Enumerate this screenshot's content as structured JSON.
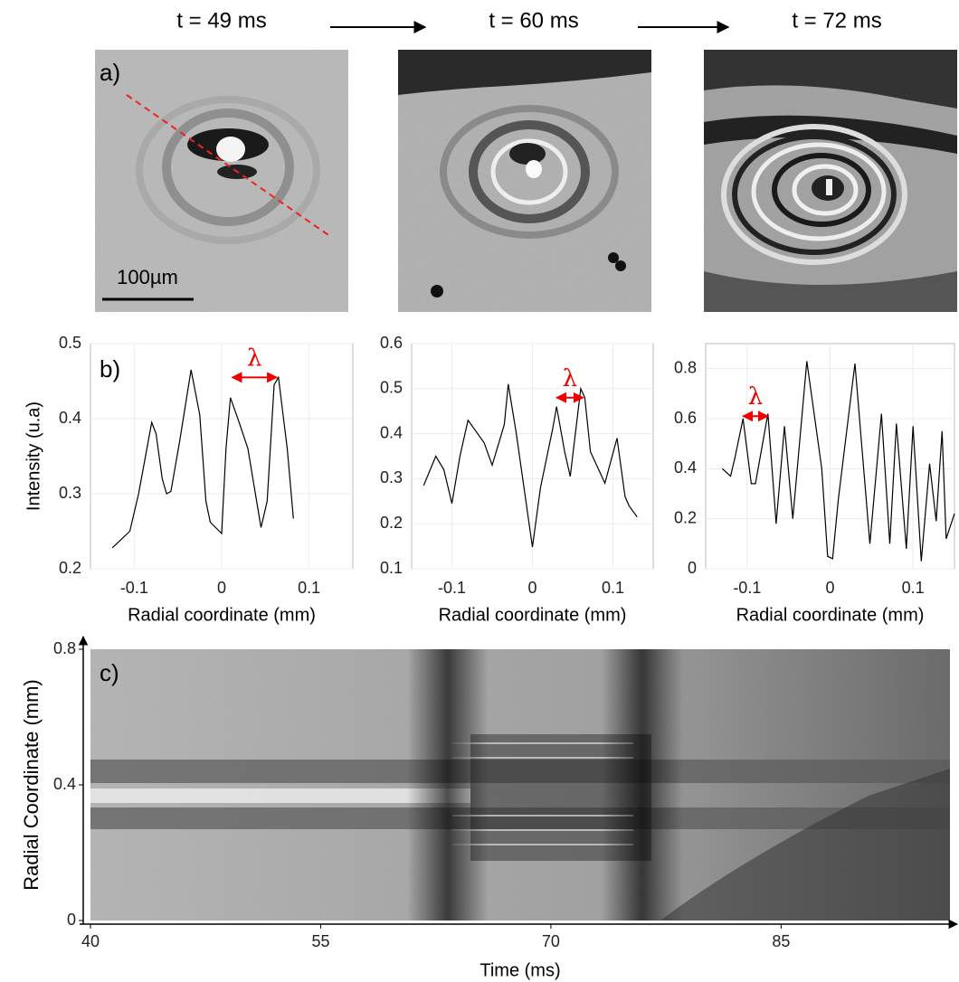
{
  "panel_a": {
    "label": "a)",
    "times": [
      "t = 49 ms",
      "t = 60 ms",
      "t = 72 ms"
    ],
    "scale_bar": "100µm"
  },
  "chart_data": [
    {
      "type": "line",
      "label": "b)",
      "ylabel": "Intensity (u.a)",
      "xlabel": "Radial coordinate (mm)",
      "color": "#000000",
      "grid": true,
      "xlim": [
        -0.15,
        0.15
      ],
      "xticks": [
        -0.1,
        0,
        0.1
      ],
      "ylim": [
        0.2,
        0.5
      ],
      "yticks": [
        0.2,
        0.3,
        0.4,
        0.5
      ],
      "x": [
        -0.125,
        -0.105,
        -0.095,
        -0.08,
        -0.075,
        -0.068,
        -0.063,
        -0.058,
        -0.048,
        -0.035,
        -0.025,
        -0.018,
        -0.013,
        0,
        0.005,
        0.01,
        0.02,
        0.03,
        0.045,
        0.052,
        0.06,
        0.065,
        0.075,
        0.082
      ],
      "values": [
        0.228,
        0.25,
        0.3,
        0.395,
        0.38,
        0.32,
        0.3,
        0.303,
        0.37,
        0.465,
        0.405,
        0.29,
        0.262,
        0.247,
        0.36,
        0.428,
        0.395,
        0.36,
        0.255,
        0.29,
        0.445,
        0.455,
        0.36,
        0.267
      ],
      "annotation": {
        "text": "λ",
        "x": [
          0.012,
          0.063
        ],
        "y": 0.455
      }
    },
    {
      "type": "line",
      "xlabel": "Radial coordinate (mm)",
      "color": "#000000",
      "grid": true,
      "xlim": [
        -0.15,
        0.15
      ],
      "xticks": [
        -0.1,
        0,
        0.1
      ],
      "ylim": [
        0.1,
        0.6
      ],
      "yticks": [
        0.1,
        0.2,
        0.3,
        0.4,
        0.5,
        0.6
      ],
      "x": [
        -0.135,
        -0.12,
        -0.11,
        -0.1,
        -0.09,
        -0.08,
        -0.06,
        -0.05,
        -0.035,
        -0.03,
        -0.02,
        0,
        0.01,
        0.025,
        0.03,
        0.04,
        0.047,
        0.06,
        0.065,
        0.072,
        0.09,
        0.105,
        0.115,
        0.12,
        0.13
      ],
      "values": [
        0.285,
        0.35,
        0.32,
        0.245,
        0.35,
        0.43,
        0.38,
        0.33,
        0.42,
        0.51,
        0.4,
        0.148,
        0.28,
        0.41,
        0.46,
        0.36,
        0.305,
        0.5,
        0.48,
        0.36,
        0.29,
        0.39,
        0.26,
        0.24,
        0.215
      ],
      "annotation": {
        "text": "λ",
        "x": [
          0.03,
          0.063
        ],
        "y": 0.48
      }
    },
    {
      "type": "line",
      "xlabel": "Radial coordinate (mm)",
      "color": "#000000",
      "grid": true,
      "xlim": [
        -0.15,
        0.15
      ],
      "xticks": [
        -0.1,
        0,
        0.1
      ],
      "ylim": [
        0,
        0.9
      ],
      "yticks": [
        0,
        0.2,
        0.4,
        0.6,
        0.8
      ],
      "x": [
        -0.13,
        -0.12,
        -0.115,
        -0.105,
        -0.095,
        -0.09,
        -0.075,
        -0.065,
        -0.055,
        -0.045,
        -0.028,
        -0.01,
        -0.003,
        0.003,
        0.01,
        0.03,
        0.048,
        0.062,
        0.072,
        0.08,
        0.092,
        0.1,
        0.11,
        0.12,
        0.128,
        0.135,
        0.14,
        0.15
      ],
      "values": [
        0.4,
        0.37,
        0.44,
        0.6,
        0.34,
        0.34,
        0.62,
        0.18,
        0.57,
        0.2,
        0.83,
        0.4,
        0.05,
        0.04,
        0.28,
        0.82,
        0.1,
        0.62,
        0.1,
        0.58,
        0.08,
        0.57,
        0.03,
        0.42,
        0.19,
        0.55,
        0.12,
        0.22
      ],
      "annotation": {
        "text": "λ",
        "x": [
          -0.105,
          -0.075
        ],
        "y": 0.61
      }
    },
    {
      "type": "image",
      "label": "c)",
      "xlabel": "Time (ms)",
      "ylabel": "Radial Coordinate (mm)",
      "xlim": [
        40,
        96
      ],
      "xticks": [
        40,
        55,
        70,
        85
      ],
      "ylim": [
        0,
        0.8
      ],
      "yticks": [
        0,
        0.4,
        0.8
      ]
    }
  ]
}
